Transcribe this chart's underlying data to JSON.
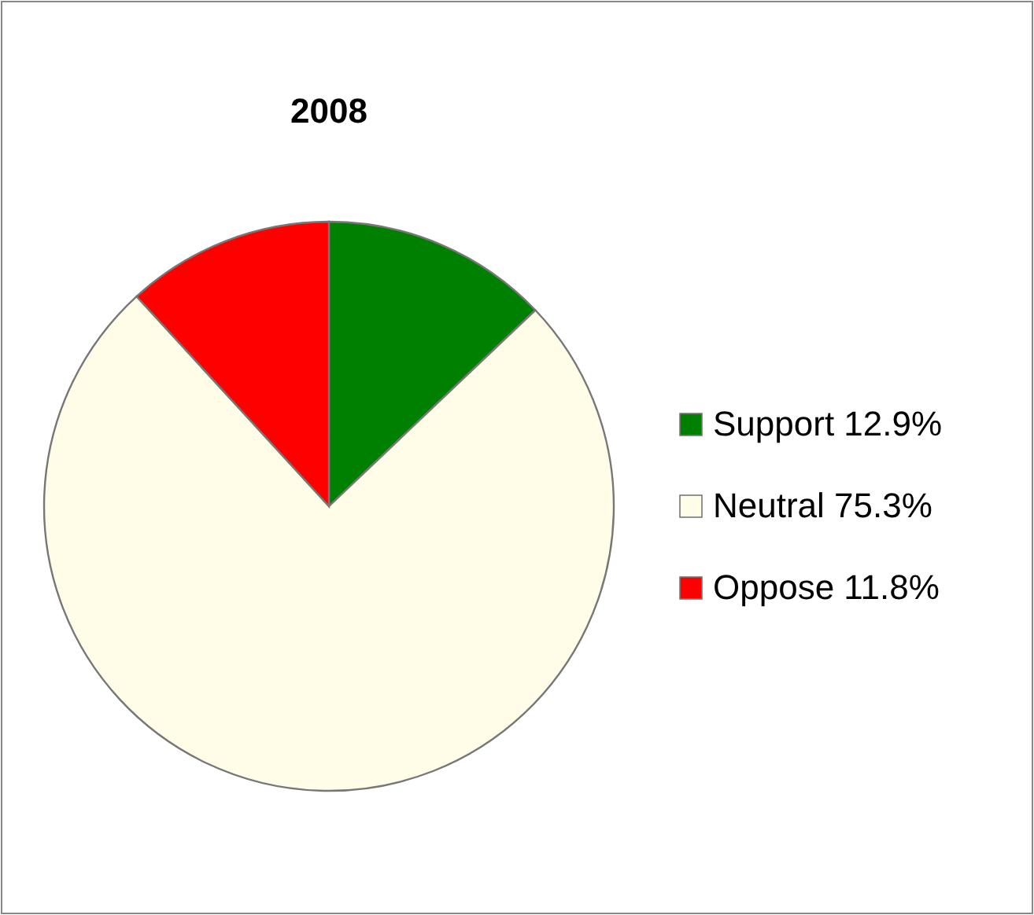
{
  "chart_data": {
    "type": "pie",
    "title": "2008",
    "categories": [
      "Support 12.9%",
      "Neutral 75.3%",
      "Oppose 11.8%"
    ],
    "values": [
      12.9,
      75.3,
      11.8
    ],
    "colors": [
      "#008000",
      "#fffde7",
      "#ff0000"
    ],
    "legend": "right"
  }
}
